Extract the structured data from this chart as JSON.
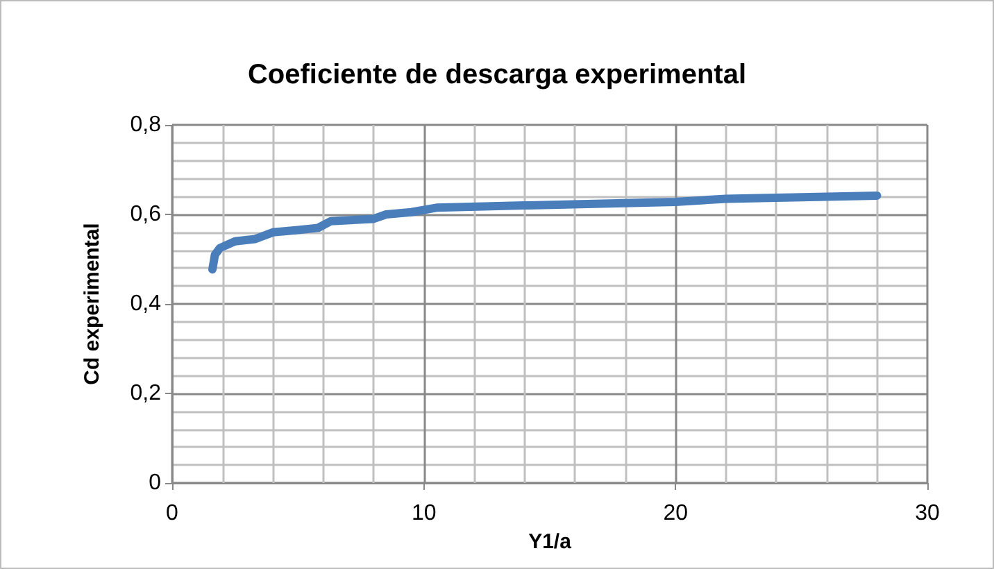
{
  "chart_data": {
    "type": "line",
    "title": "Coeficiente de descarga experimental",
    "xlabel": "Y1/a",
    "ylabel": "Cd experimental",
    "x": [
      1.6,
      1.7,
      1.9,
      2.5,
      3.3,
      4,
      5,
      5.8,
      6.3,
      8,
      8.5,
      9.5,
      10.5,
      14,
      20,
      22,
      28
    ],
    "series": [
      {
        "color": "#4a7ebb",
        "values": [
          0.477,
          0.51,
          0.525,
          0.54,
          0.545,
          0.56,
          0.565,
          0.57,
          0.585,
          0.59,
          0.6,
          0.605,
          0.615,
          0.62,
          0.628,
          0.635,
          0.642
        ]
      }
    ],
    "xlim": [
      0,
      30
    ],
    "xticks": [
      0,
      10,
      20,
      30
    ],
    "ylim": [
      0,
      0.8
    ],
    "yticks": [
      0,
      {
        "value": 0.2,
        "label": "0,2"
      },
      {
        "value": 0.4,
        "label": "0,4"
      },
      {
        "value": 0.6,
        "label": "0,6"
      },
      {
        "value": 0.8,
        "label": "0,8"
      }
    ],
    "grid": true,
    "marker": "none",
    "line_style": "solid"
  }
}
